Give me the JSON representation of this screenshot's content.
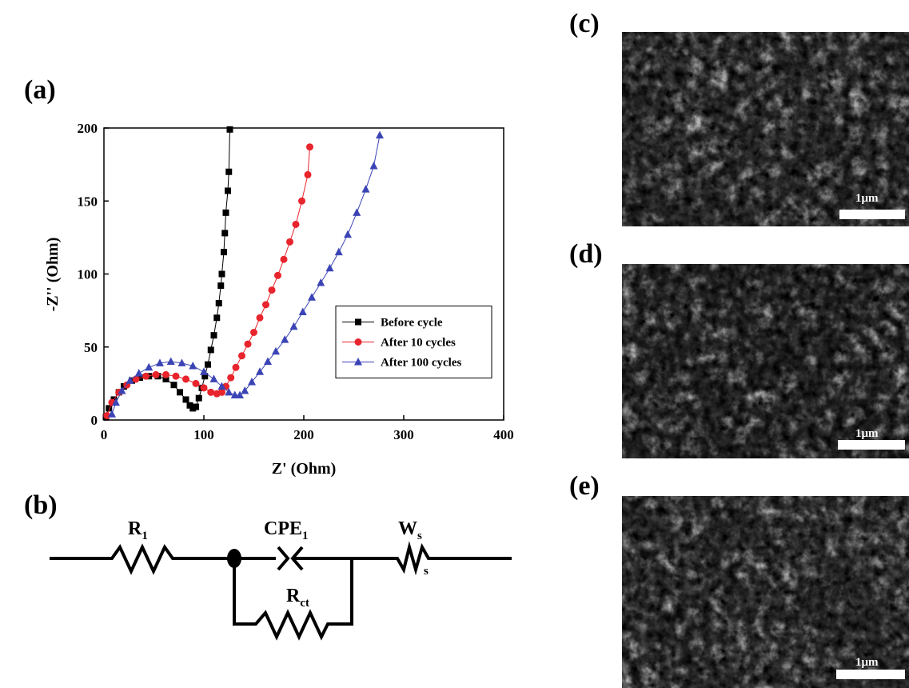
{
  "panels": {
    "a": "(a)",
    "b": "(b)",
    "c": "(c)",
    "d": "(d)",
    "e": "(e)"
  },
  "chart_data": {
    "type": "line",
    "x_label": "Z' (Ohm)",
    "y_label": "-Z'' (Ohm)",
    "xlim": [
      0,
      400
    ],
    "xticks": [
      0,
      100,
      200,
      300,
      400
    ],
    "ylim": [
      0,
      200
    ],
    "yticks": [
      0,
      50,
      100,
      150,
      200
    ],
    "legend": "right",
    "series": [
      {
        "name": "Before cycle",
        "color": "#000000",
        "marker": "square",
        "x": [
          2,
          5,
          10,
          15,
          20,
          28,
          36,
          45,
          54,
          62,
          70,
          76,
          82,
          86,
          89,
          92,
          95,
          98,
          101,
          104,
          107,
          110,
          113,
          115,
          117,
          118,
          120,
          121,
          122,
          124,
          125,
          126
        ],
        "values": [
          2,
          8,
          14,
          19,
          23,
          27,
          29,
          30,
          30,
          28,
          24,
          19,
          14,
          10,
          8,
          9,
          15,
          22,
          30,
          38,
          48,
          58,
          70,
          80,
          92,
          100,
          115,
          128,
          142,
          157,
          170,
          199
        ]
      },
      {
        "name": "After 10 cycles",
        "color": "#e8242c",
        "marker": "circle",
        "x": [
          3,
          8,
          15,
          23,
          32,
          42,
          52,
          62,
          72,
          82,
          92,
          100,
          107,
          113,
          118,
          122,
          127,
          132,
          138,
          144,
          150,
          156,
          162,
          168,
          174,
          180,
          186,
          192,
          198,
          204,
          206
        ],
        "values": [
          3,
          12,
          19,
          24,
          28,
          30,
          31,
          31,
          30,
          28,
          25,
          22,
          19,
          18,
          19,
          23,
          29,
          36,
          44,
          52,
          60,
          70,
          79,
          89,
          99,
          110,
          122,
          134,
          150,
          168,
          187
        ]
      },
      {
        "name": "After 100 cycles",
        "color": "#3b44b5",
        "marker": "triangle",
        "x": [
          8,
          12,
          18,
          26,
          35,
          45,
          56,
          67,
          78,
          89,
          100,
          110,
          118,
          125,
          131,
          136,
          141,
          148,
          156,
          164,
          172,
          181,
          190,
          199,
          208,
          217,
          226,
          235,
          244,
          253,
          262,
          270,
          276
        ],
        "values": [
          4,
          12,
          20,
          27,
          32,
          36,
          39,
          40,
          39,
          37,
          33,
          28,
          23,
          19,
          17,
          17,
          20,
          26,
          33,
          40,
          47,
          55,
          64,
          74,
          84,
          94,
          104,
          115,
          127,
          142,
          158,
          174,
          195
        ]
      }
    ]
  },
  "circuit": {
    "r1": {
      "main": "R",
      "sub": "1"
    },
    "cpe1": {
      "main": "CPE",
      "sub": "1"
    },
    "ws": {
      "main": "W",
      "sub": "s"
    },
    "rct": {
      "main": "R",
      "sub": "ct"
    }
  },
  "sem": [
    {
      "scale_bar": "1μm"
    },
    {
      "scale_bar": "1μm"
    },
    {
      "scale_bar": "1μm"
    }
  ]
}
